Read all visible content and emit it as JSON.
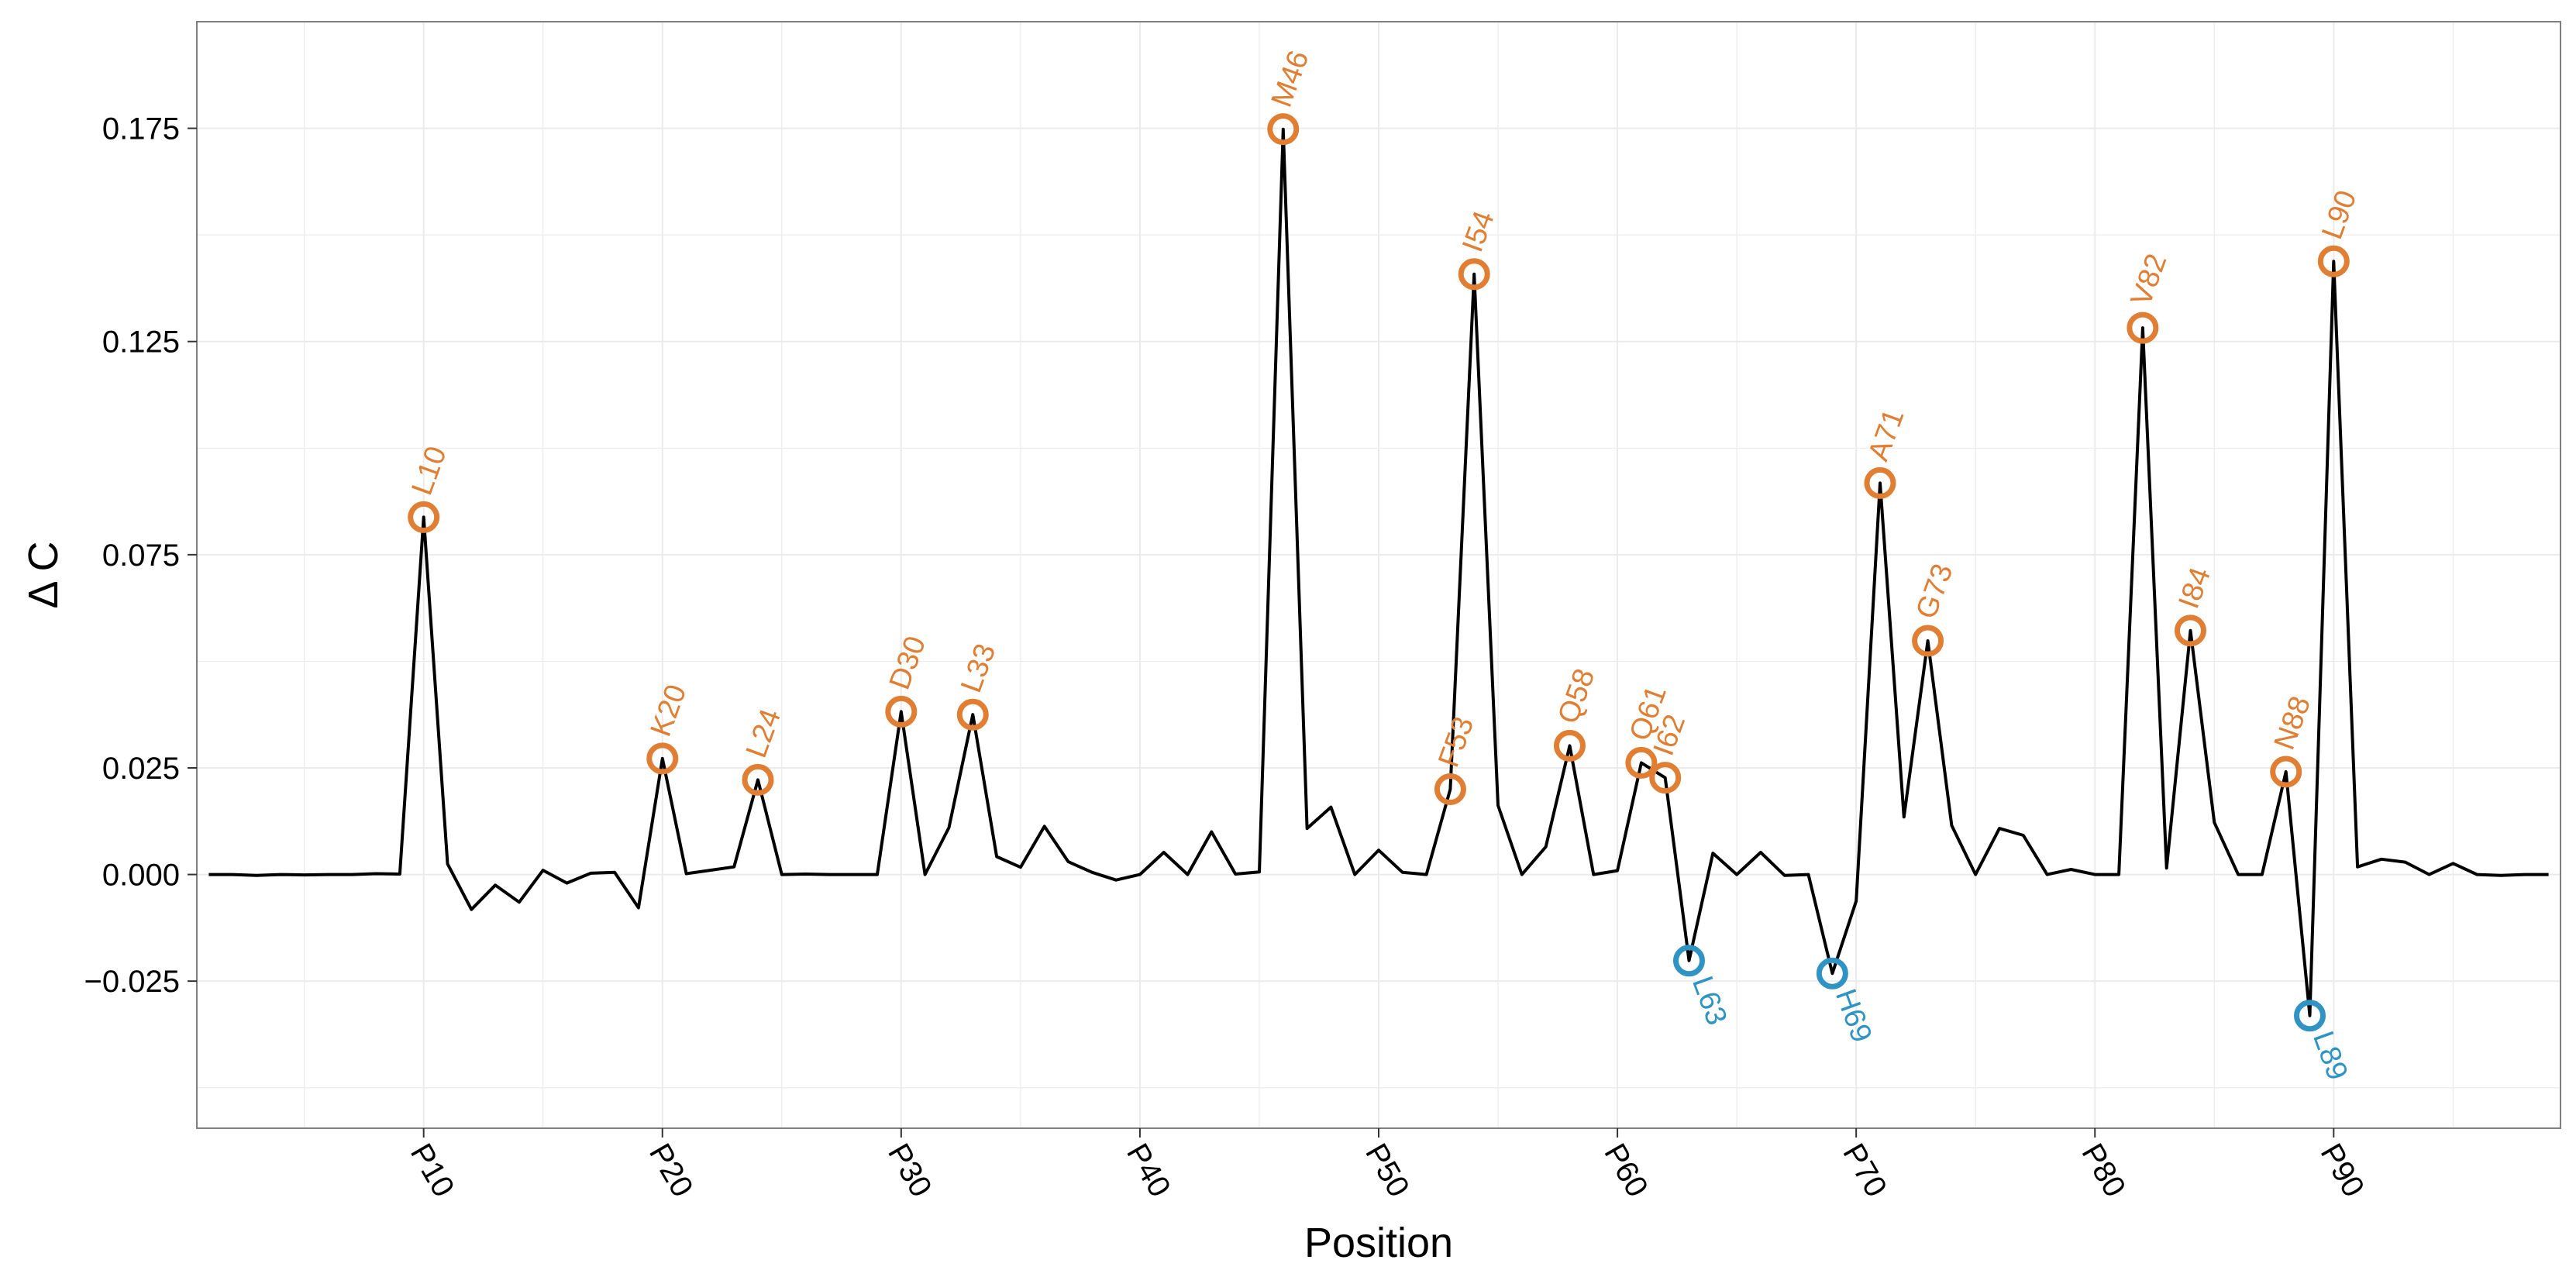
{
  "colors": {
    "positive": "#e07f34",
    "negative": "#2f93c4",
    "line": "#000000",
    "grid": "#ebebeb",
    "panel_border": "#7f7f7f"
  },
  "chart_data": {
    "type": "line",
    "title": "",
    "xlabel": "Position",
    "ylabel": "Δ C",
    "xlim": [
      0.5,
      99.5
    ],
    "ylim": [
      -0.0595,
      0.2
    ],
    "grid": true,
    "legend": "none",
    "x_ticks": [
      {
        "value": 10,
        "label": "P10"
      },
      {
        "value": 20,
        "label": "P20"
      },
      {
        "value": 30,
        "label": "P30"
      },
      {
        "value": 40,
        "label": "P40"
      },
      {
        "value": 50,
        "label": "P50"
      },
      {
        "value": 60,
        "label": "P60"
      },
      {
        "value": 70,
        "label": "P70"
      },
      {
        "value": 80,
        "label": "P80"
      },
      {
        "value": 90,
        "label": "P90"
      }
    ],
    "y_ticks": [
      {
        "value": -0.025,
        "label": "−0.025"
      },
      {
        "value": 0.0,
        "label": "0.000"
      },
      {
        "value": 0.025,
        "label": "0.025"
      },
      {
        "value": 0.075,
        "label": "0.075"
      },
      {
        "value": 0.125,
        "label": "0.125"
      },
      {
        "value": 0.175,
        "label": "0.175"
      }
    ],
    "x": [
      1,
      2,
      3,
      4,
      5,
      6,
      7,
      8,
      9,
      10,
      11,
      12,
      13,
      14,
      15,
      16,
      17,
      18,
      19,
      20,
      21,
      22,
      23,
      24,
      25,
      26,
      27,
      28,
      29,
      30,
      31,
      32,
      33,
      34,
      35,
      36,
      37,
      38,
      39,
      40,
      41,
      42,
      43,
      44,
      45,
      46,
      47,
      48,
      49,
      50,
      51,
      52,
      53,
      54,
      55,
      56,
      57,
      58,
      59,
      60,
      61,
      62,
      63,
      64,
      65,
      66,
      67,
      68,
      69,
      70,
      71,
      72,
      73,
      74,
      75,
      76,
      77,
      78,
      79,
      80,
      81,
      82,
      83,
      84,
      85,
      86,
      87,
      88,
      89,
      90,
      91,
      92,
      93,
      94,
      95,
      96,
      97,
      98,
      99
    ],
    "series": [
      {
        "name": "Delta C",
        "values": [
          0.0,
          0.0,
          -0.0002,
          0.0,
          -0.0001,
          0.0,
          0.0,
          0.0002,
          0.0001,
          0.0838,
          0.0025,
          -0.0082,
          -0.0025,
          -0.0065,
          0.001,
          -0.002,
          0.0003,
          0.0005,
          -0.0078,
          0.0272,
          0.0002,
          0.001,
          0.0018,
          0.0222,
          0.0,
          0.0001,
          0.0,
          0.0,
          0.0,
          0.0382,
          0.0,
          0.011,
          0.0375,
          0.0042,
          0.0017,
          0.0113,
          0.003,
          0.0005,
          -0.0013,
          0.0,
          0.0052,
          0.0,
          0.01,
          0.0001,
          0.0006,
          0.1748,
          0.0108,
          0.0158,
          0.0,
          0.0057,
          0.0005,
          0.0,
          0.02,
          0.1408,
          0.0162,
          0.0,
          0.0065,
          0.0302,
          0.0,
          0.0009,
          0.0262,
          0.0227,
          -0.0202,
          0.005,
          0.0,
          0.0052,
          -0.0002,
          0.0,
          -0.0232,
          -0.0062,
          0.0918,
          0.0135,
          0.0548,
          0.0115,
          0.0,
          0.0108,
          0.0092,
          0.0,
          0.0012,
          0.0,
          0.0,
          0.1282,
          0.0015,
          0.0572,
          0.0122,
          0.0,
          0.0,
          0.0241,
          -0.0331,
          0.1438,
          0.0018,
          0.0036,
          0.0029,
          0.0,
          0.0026,
          0.0,
          -0.0002,
          0.0,
          0.0
        ]
      }
    ],
    "labeled_points": [
      {
        "label": "L10",
        "x": 10,
        "y": 0.0838,
        "group": "positive"
      },
      {
        "label": "K20",
        "x": 20,
        "y": 0.0272,
        "group": "positive"
      },
      {
        "label": "L24",
        "x": 24,
        "y": 0.0222,
        "group": "positive"
      },
      {
        "label": "D30",
        "x": 30,
        "y": 0.0382,
        "group": "positive"
      },
      {
        "label": "L33",
        "x": 33,
        "y": 0.0375,
        "group": "positive"
      },
      {
        "label": "M46",
        "x": 46,
        "y": 0.1748,
        "group": "positive"
      },
      {
        "label": "F53",
        "x": 53,
        "y": 0.02,
        "group": "positive"
      },
      {
        "label": "I54",
        "x": 54,
        "y": 0.1408,
        "group": "positive"
      },
      {
        "label": "Q58",
        "x": 58,
        "y": 0.0302,
        "group": "positive"
      },
      {
        "label": "Q61",
        "x": 61,
        "y": 0.0262,
        "group": "positive"
      },
      {
        "label": "I62",
        "x": 62,
        "y": 0.0227,
        "group": "positive"
      },
      {
        "label": "A71",
        "x": 71,
        "y": 0.0918,
        "group": "positive"
      },
      {
        "label": "G73",
        "x": 73,
        "y": 0.0548,
        "group": "positive"
      },
      {
        "label": "V82",
        "x": 82,
        "y": 0.1282,
        "group": "positive"
      },
      {
        "label": "I84",
        "x": 84,
        "y": 0.0572,
        "group": "positive"
      },
      {
        "label": "N88",
        "x": 88,
        "y": 0.0241,
        "group": "positive"
      },
      {
        "label": "L90",
        "x": 90,
        "y": 0.1438,
        "group": "positive"
      },
      {
        "label": "L63",
        "x": 63,
        "y": -0.0202,
        "group": "negative"
      },
      {
        "label": "H69",
        "x": 69,
        "y": -0.0232,
        "group": "negative"
      },
      {
        "label": "L89",
        "x": 89,
        "y": -0.0331,
        "group": "negative"
      }
    ]
  }
}
